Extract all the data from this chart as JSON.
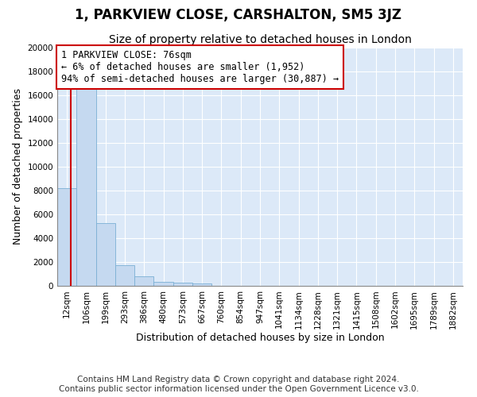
{
  "title": "1, PARKVIEW CLOSE, CARSHALTON, SM5 3JZ",
  "subtitle": "Size of property relative to detached houses in London",
  "xlabel": "Distribution of detached houses by size in London",
  "ylabel": "Number of detached properties",
  "bar_color": "#c5d9f0",
  "bar_edge_color": "#7bafd4",
  "background_color": "#dce9f8",
  "grid_color": "#ffffff",
  "categories": [
    "12sqm",
    "106sqm",
    "199sqm",
    "293sqm",
    "386sqm",
    "480sqm",
    "573sqm",
    "667sqm",
    "760sqm",
    "854sqm",
    "947sqm",
    "1041sqm",
    "1134sqm",
    "1228sqm",
    "1321sqm",
    "1415sqm",
    "1508sqm",
    "1602sqm",
    "1695sqm",
    "1789sqm",
    "1882sqm"
  ],
  "values": [
    8200,
    16700,
    5300,
    1750,
    800,
    350,
    270,
    200,
    5,
    0,
    0,
    0,
    0,
    0,
    0,
    0,
    0,
    0,
    0,
    0,
    0
  ],
  "ylim": [
    0,
    20000
  ],
  "yticks": [
    0,
    2000,
    4000,
    6000,
    8000,
    10000,
    12000,
    14000,
    16000,
    18000,
    20000
  ],
  "property_label": "1 PARKVIEW CLOSE: 76sqm",
  "annotation_line1": "← 6% of detached houses are smaller (1,952)",
  "annotation_line2": "94% of semi-detached houses are larger (30,887) →",
  "vline_color": "#cc0000",
  "annotation_box_color": "#ffffff",
  "annotation_box_edge": "#cc0000",
  "footer_line1": "Contains HM Land Registry data © Crown copyright and database right 2024.",
  "footer_line2": "Contains public sector information licensed under the Open Government Licence v3.0.",
  "title_fontsize": 12,
  "subtitle_fontsize": 10,
  "axis_label_fontsize": 9,
  "tick_fontsize": 7.5,
  "annotation_fontsize": 8.5,
  "footer_fontsize": 7.5
}
